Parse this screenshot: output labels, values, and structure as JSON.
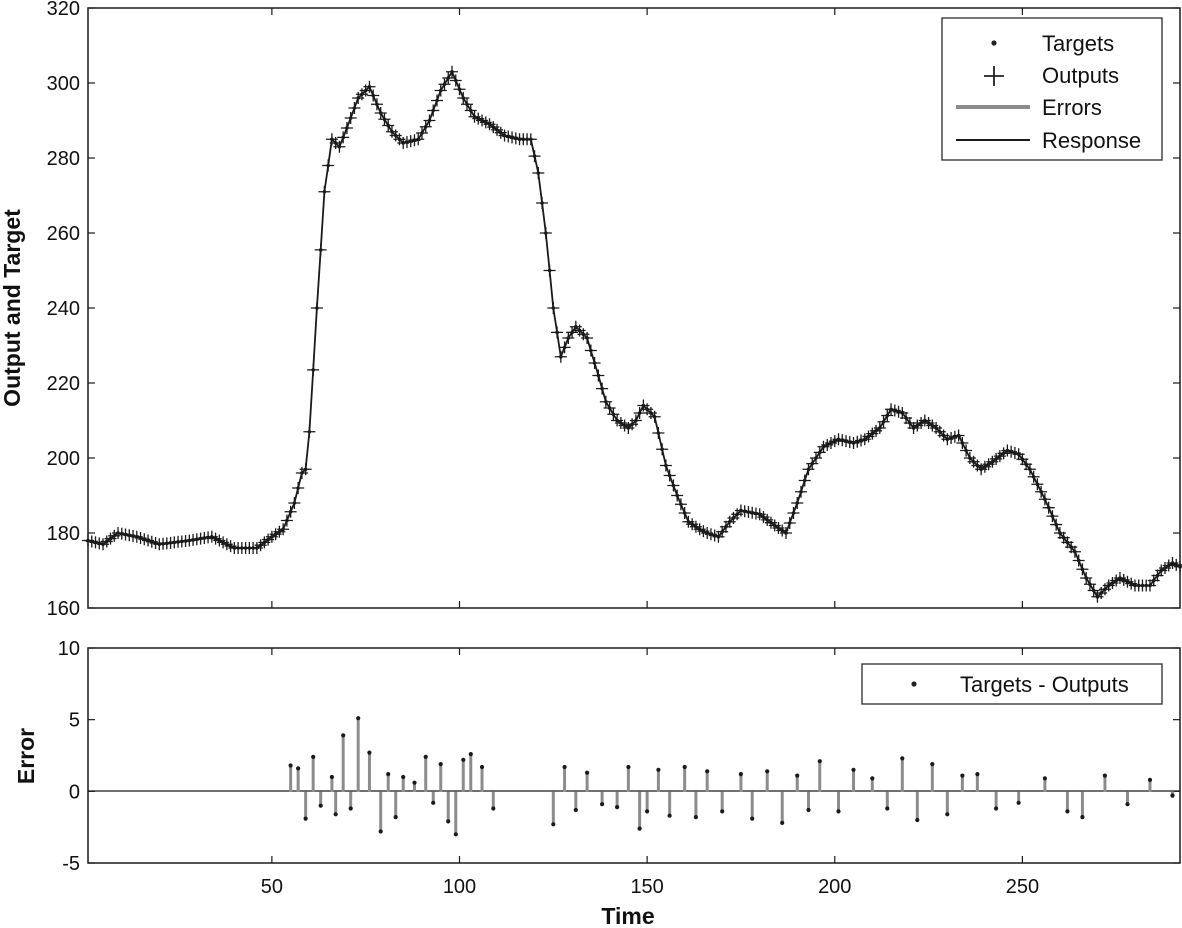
{
  "chart_data": [
    {
      "type": "line",
      "ylabel": "Output and Target",
      "xlim": [
        1,
        292
      ],
      "ylim": [
        160,
        320
      ],
      "yticks": [
        160,
        180,
        200,
        220,
        240,
        260,
        280,
        300,
        320
      ],
      "legend": {
        "placement": "top-right",
        "entries": [
          "Targets",
          "Outputs",
          "Errors",
          "Response"
        ]
      },
      "anchors": [
        [
          1,
          178
        ],
        [
          5,
          177
        ],
        [
          9,
          180
        ],
        [
          14,
          179
        ],
        [
          20,
          177
        ],
        [
          28,
          178
        ],
        [
          34,
          179
        ],
        [
          40,
          176
        ],
        [
          46,
          176
        ],
        [
          50,
          179
        ],
        [
          53,
          181
        ],
        [
          56,
          188
        ],
        [
          58,
          196
        ],
        [
          59,
          197
        ],
        [
          60,
          207
        ],
        [
          62,
          240
        ],
        [
          64,
          271
        ],
        [
          66,
          285
        ],
        [
          68,
          283
        ],
        [
          70,
          288
        ],
        [
          73,
          296
        ],
        [
          76,
          299
        ],
        [
          79,
          292
        ],
        [
          82,
          287
        ],
        [
          85,
          284
        ],
        [
          89,
          285
        ],
        [
          92,
          290
        ],
        [
          95,
          298
        ],
        [
          98,
          303
        ],
        [
          101,
          296
        ],
        [
          104,
          291
        ],
        [
          108,
          289
        ],
        [
          112,
          286
        ],
        [
          116,
          285
        ],
        [
          119,
          285
        ],
        [
          121,
          276
        ],
        [
          123,
          260
        ],
        [
          125,
          240
        ],
        [
          127,
          227
        ],
        [
          129,
          232
        ],
        [
          131,
          235
        ],
        [
          134,
          232
        ],
        [
          137,
          222
        ],
        [
          139,
          215
        ],
        [
          142,
          210
        ],
        [
          145,
          208
        ],
        [
          147,
          210
        ],
        [
          149,
          214
        ],
        [
          152,
          211
        ],
        [
          155,
          198
        ],
        [
          158,
          190
        ],
        [
          161,
          183
        ],
        [
          164,
          181
        ],
        [
          166,
          180
        ],
        [
          169,
          179
        ],
        [
          172,
          183
        ],
        [
          175,
          186
        ],
        [
          180,
          185
        ],
        [
          184,
          182
        ],
        [
          187,
          180
        ],
        [
          190,
          188
        ],
        [
          193,
          197
        ],
        [
          197,
          203
        ],
        [
          201,
          205
        ],
        [
          205,
          204
        ],
        [
          208,
          205
        ],
        [
          212,
          208
        ],
        [
          215,
          213
        ],
        [
          218,
          212
        ],
        [
          221,
          208
        ],
        [
          224,
          210
        ],
        [
          227,
          208
        ],
        [
          230,
          205
        ],
        [
          233,
          206
        ],
        [
          236,
          200
        ],
        [
          239,
          197
        ],
        [
          242,
          199
        ],
        [
          246,
          202
        ],
        [
          249,
          201
        ],
        [
          252,
          197
        ],
        [
          256,
          189
        ],
        [
          260,
          180
        ],
        [
          264,
          175
        ],
        [
          267,
          168
        ],
        [
          270,
          163
        ],
        [
          273,
          166
        ],
        [
          276,
          168
        ],
        [
          280,
          166
        ],
        [
          284,
          166
        ],
        [
          287,
          170
        ],
        [
          290,
          172
        ],
        [
          292,
          171
        ]
      ]
    },
    {
      "type": "bar",
      "ylabel": "Error",
      "xlabel": "Time",
      "xlim": [
        1,
        292
      ],
      "ylim": [
        -5,
        10
      ],
      "xticks": [
        50,
        100,
        150,
        200,
        250
      ],
      "yticks": [
        -5,
        0,
        5,
        10
      ],
      "legend": {
        "placement": "top-right",
        "entries": [
          "Targets - Outputs"
        ]
      },
      "x": [
        55,
        57,
        59,
        61,
        63,
        66,
        67,
        69,
        71,
        73,
        76,
        79,
        81,
        83,
        85,
        88,
        91,
        93,
        95,
        97,
        99,
        101,
        103,
        106,
        109,
        125,
        128,
        131,
        134,
        138,
        142,
        145,
        148,
        150,
        153,
        156,
        160,
        163,
        166,
        170,
        175,
        178,
        182,
        186,
        190,
        193,
        196,
        201,
        205,
        210,
        214,
        218,
        222,
        226,
        230,
        234,
        238,
        243,
        249,
        256,
        262,
        266,
        272,
        278,
        284,
        290
      ],
      "values": [
        1.8,
        1.6,
        -1.9,
        2.4,
        -1.0,
        1.0,
        -1.6,
        3.9,
        -1.2,
        5.1,
        2.7,
        -2.8,
        1.2,
        -1.8,
        1.0,
        0.6,
        2.4,
        -0.8,
        1.9,
        -2.1,
        -3.0,
        2.2,
        2.6,
        1.7,
        -1.2,
        -2.3,
        1.7,
        -1.3,
        1.3,
        -0.9,
        -1.1,
        1.7,
        -2.6,
        -1.4,
        1.5,
        -1.7,
        1.7,
        -1.8,
        1.4,
        -1.4,
        1.2,
        -1.9,
        1.4,
        -2.2,
        1.1,
        -1.3,
        2.1,
        -1.4,
        1.5,
        0.9,
        -1.2,
        2.3,
        -2.0,
        1.9,
        -1.6,
        1.1,
        1.2,
        -1.2,
        -0.8,
        0.9,
        -1.4,
        -1.8,
        1.1,
        -0.9,
        0.8,
        -0.3
      ]
    }
  ]
}
